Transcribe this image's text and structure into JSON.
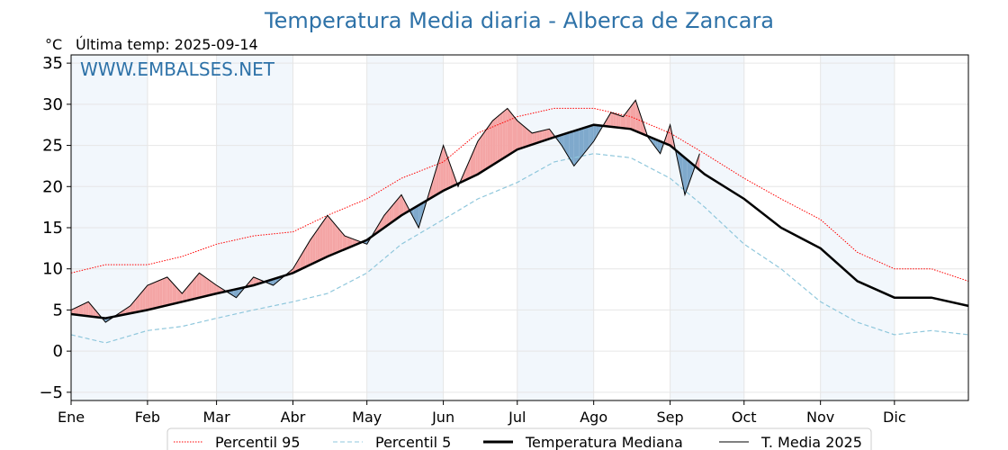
{
  "title": "Temperatura Media diaria - Alberca de Zancara",
  "unit": "°C",
  "last_temp": "Última temp: 2025-09-14",
  "watermark": "WWW.EMBALSES.NET",
  "colors": {
    "p95": "#ff0000",
    "p5": "#8fc7dc",
    "median": "#000000",
    "current": "#000000",
    "above": "#f4a5a5",
    "below": "#7fa9cc",
    "title": "#2e72a8",
    "band": "#f2f7fc"
  },
  "chart_data": {
    "type": "line",
    "title": "Temperatura Media diaria - Alberca de Zancara",
    "ylabel": "°C",
    "ylim": [
      -6,
      36
    ],
    "yticks": [
      -5,
      0,
      5,
      10,
      15,
      20,
      25,
      30,
      35
    ],
    "x_range_days": [
      1,
      365
    ],
    "month_labels": [
      "Ene",
      "Feb",
      "Mar",
      "Abr",
      "May",
      "Jun",
      "Jul",
      "Ago",
      "Sep",
      "Oct",
      "Nov",
      "Dic"
    ],
    "month_start_days": [
      1,
      32,
      60,
      91,
      121,
      152,
      182,
      213,
      244,
      274,
      305,
      335
    ],
    "grid": true,
    "legend_position": "bottom",
    "legend": [
      "Percentil 95",
      "Percentil 5",
      "Temperatura Mediana",
      "T. Media 2025"
    ],
    "series": [
      {
        "name": "Percentil 95",
        "style": "dotted",
        "x": [
          1,
          15,
          32,
          46,
          60,
          75,
          91,
          105,
          121,
          135,
          152,
          166,
          182,
          197,
          213,
          228,
          244,
          258,
          274,
          289,
          305,
          320,
          335,
          350,
          365
        ],
        "values": [
          9.5,
          10.5,
          10.5,
          11.5,
          13,
          14,
          14.5,
          16.5,
          18.5,
          21,
          23,
          26.5,
          28.5,
          29.5,
          29.5,
          28.5,
          26.5,
          24,
          21,
          18.5,
          16,
          12,
          10,
          10,
          8.5
        ]
      },
      {
        "name": "Percentil 5",
        "style": "dashed",
        "x": [
          1,
          15,
          32,
          46,
          60,
          75,
          91,
          105,
          121,
          135,
          152,
          166,
          182,
          197,
          213,
          228,
          244,
          258,
          274,
          289,
          305,
          320,
          335,
          350,
          365
        ],
        "values": [
          2,
          1,
          2.5,
          3,
          4,
          5,
          6,
          7,
          9.5,
          13,
          16,
          18.5,
          20.5,
          23,
          24,
          23.5,
          21,
          17.5,
          13,
          10,
          6,
          3.5,
          2,
          2.5,
          2
        ]
      },
      {
        "name": "Temperatura Mediana",
        "style": "thick",
        "x": [
          1,
          15,
          32,
          46,
          60,
          75,
          91,
          105,
          121,
          135,
          152,
          166,
          182,
          197,
          213,
          228,
          244,
          258,
          274,
          289,
          305,
          320,
          335,
          350,
          365
        ],
        "values": [
          4.5,
          4,
          5,
          6,
          7,
          8,
          9.5,
          11.5,
          13.5,
          16.5,
          19.5,
          21.5,
          24.5,
          26,
          27.5,
          27,
          25,
          21.5,
          18.5,
          15,
          12.5,
          8.5,
          6.5,
          6.5,
          5.5
        ]
      },
      {
        "name": "T. Media 2025",
        "style": "thin",
        "x": [
          1,
          8,
          15,
          25,
          32,
          40,
          46,
          53,
          60,
          68,
          75,
          83,
          91,
          98,
          105,
          112,
          121,
          128,
          135,
          142,
          148,
          152,
          158,
          166,
          172,
          178,
          182,
          188,
          195,
          200,
          205,
          213,
          220,
          225,
          230,
          235,
          240,
          244,
          250,
          256
        ],
        "values": [
          5,
          6,
          3.5,
          5.5,
          8,
          9,
          7,
          9.5,
          8,
          6.5,
          9,
          8,
          10,
          13.5,
          16.5,
          14,
          13,
          16.5,
          19,
          15,
          21,
          25,
          20,
          25.5,
          28,
          29.5,
          28,
          26.5,
          27,
          25,
          22.5,
          25.5,
          29,
          28.5,
          30.5,
          26,
          24,
          27.5,
          19,
          24
        ]
      }
    ]
  }
}
